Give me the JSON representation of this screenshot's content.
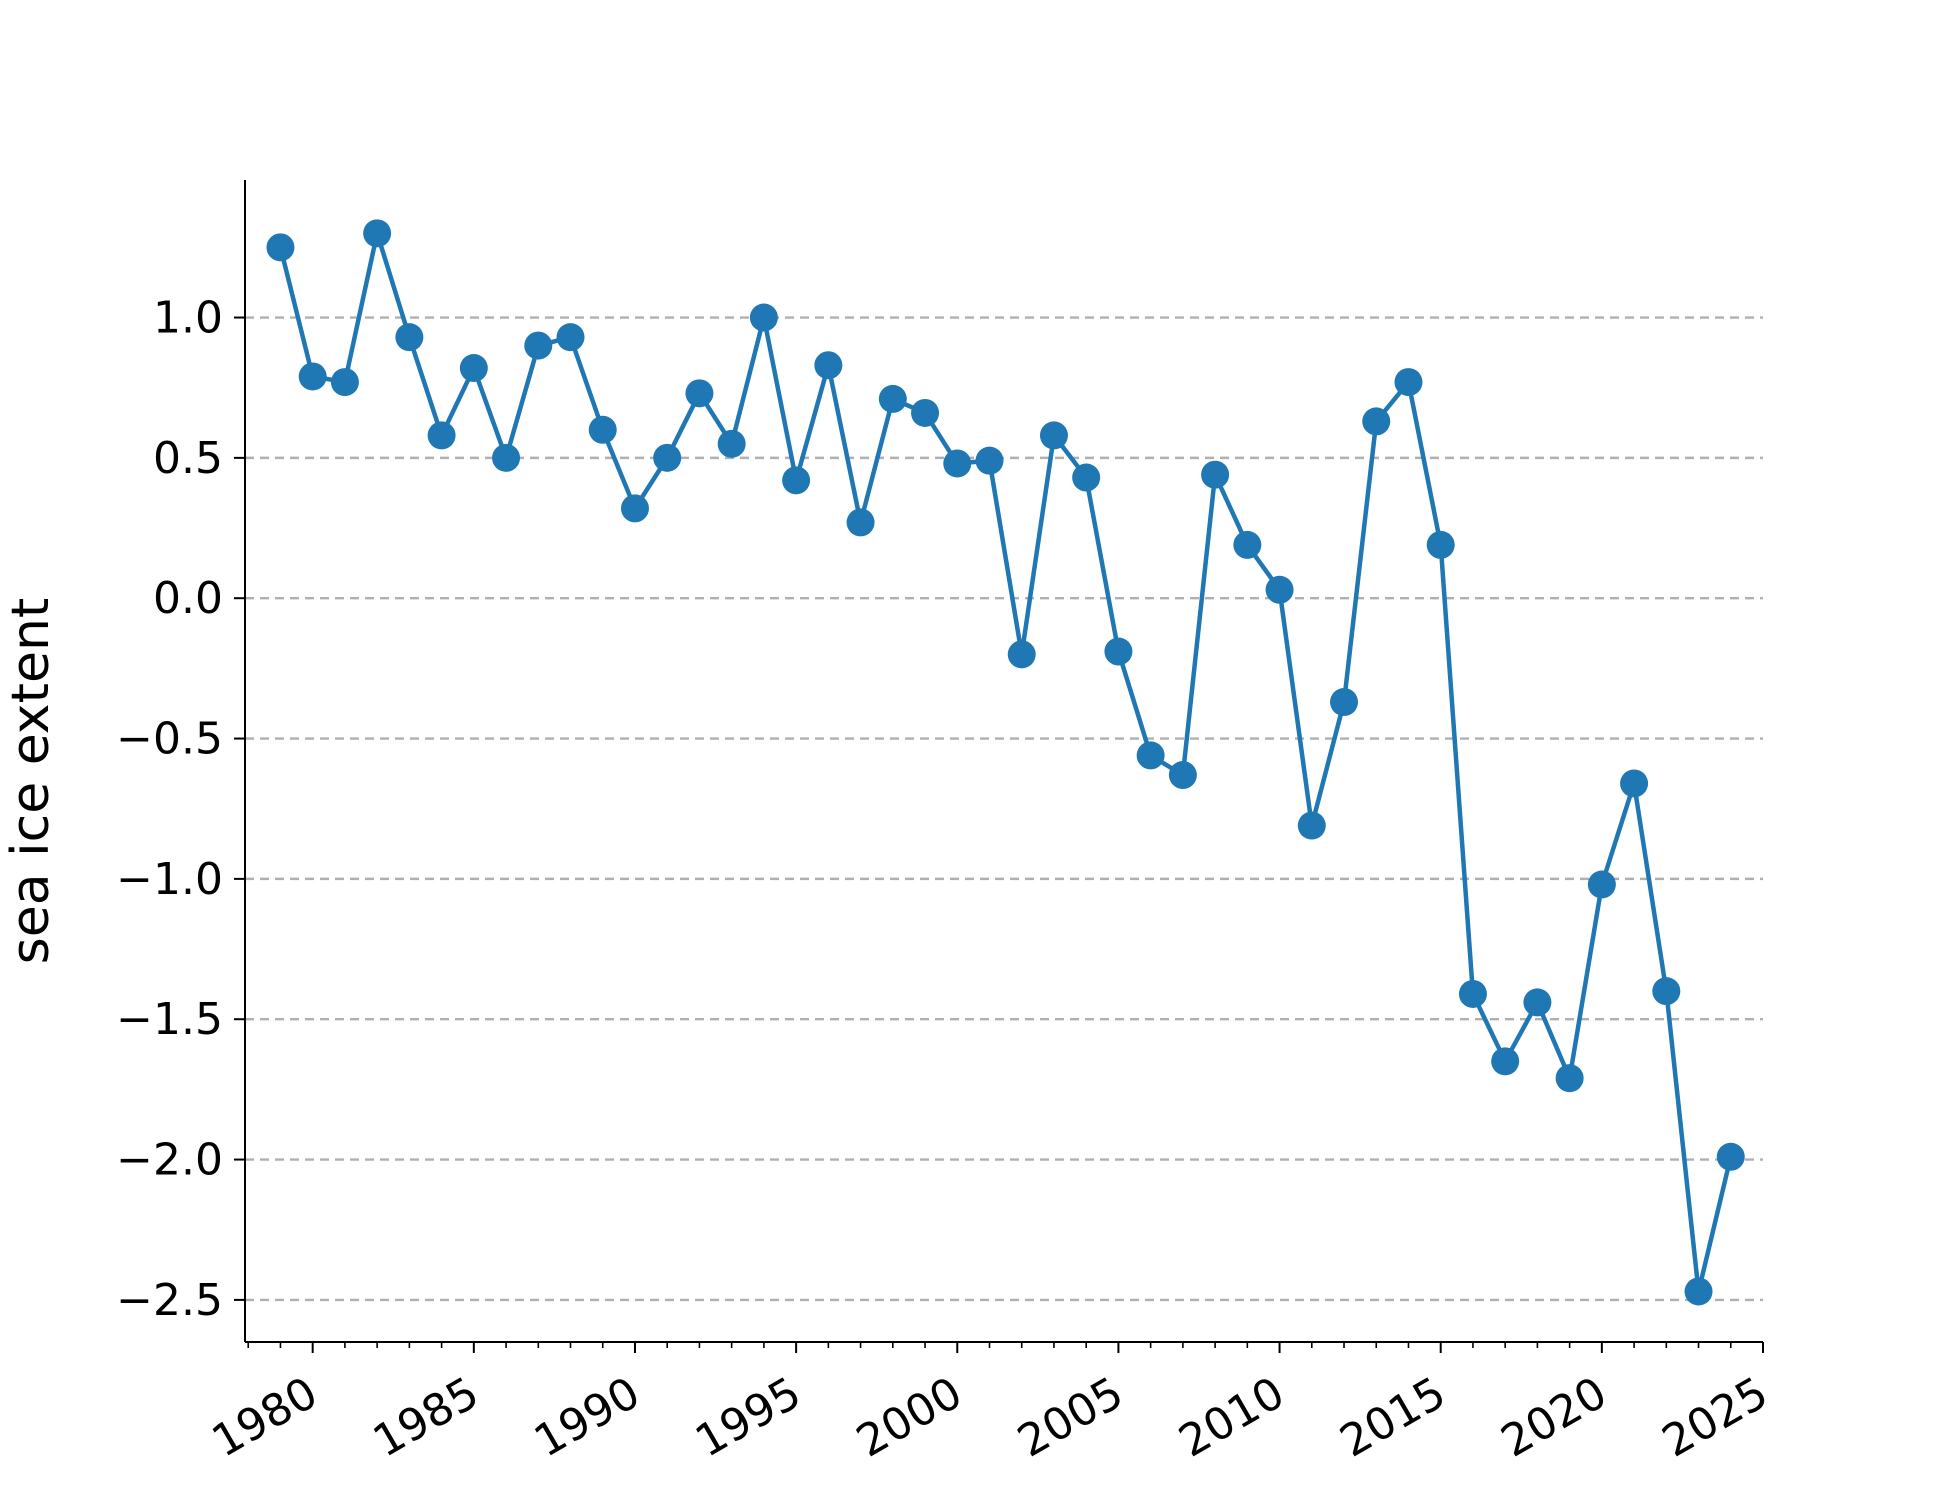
{
  "chart_data": {
    "type": "line",
    "title": "",
    "xlabel": "",
    "ylabel": "sea ice extent",
    "xlim": [
      1977.9,
      2025
    ],
    "ylim": [
      -2.65,
      1.49
    ],
    "x_ticks": [
      1980,
      1985,
      1990,
      1995,
      2000,
      2005,
      2010,
      2015,
      2020,
      2025
    ],
    "x_tick_labels": [
      "1980",
      "1985",
      "1990",
      "1995",
      "2000",
      "2005",
      "2010",
      "2015",
      "2020",
      "2025"
    ],
    "y_ticks": [
      1.0,
      0.5,
      0.0,
      -0.5,
      -1.0,
      -1.5,
      -2.0,
      -2.5
    ],
    "y_tick_labels": [
      "1.0",
      "0.5",
      "0.0",
      "−0.5",
      "−1.0",
      "−1.5",
      "−2.0",
      "−2.5"
    ],
    "grid": "horizontal dashed",
    "legend": "none",
    "colors": {
      "series": "#1f77b4",
      "grid": "#b0b0b0",
      "axis": "#000000"
    },
    "series": [
      {
        "x": [
          1979,
          1980,
          1981,
          1982,
          1983,
          1984,
          1985,
          1986,
          1987,
          1988,
          1989,
          1990,
          1991,
          1992,
          1993,
          1994,
          1995,
          1996,
          1997,
          1998,
          1999,
          2000,
          2001,
          2002,
          2003,
          2004,
          2005,
          2006,
          2007,
          2008,
          2009,
          2010,
          2011,
          2012,
          2013,
          2014,
          2015,
          2016,
          2017,
          2018,
          2019,
          2020,
          2021,
          2022,
          2023,
          2024
        ],
        "values": [
          1.25,
          0.79,
          0.77,
          1.3,
          0.93,
          0.58,
          0.82,
          0.5,
          0.9,
          0.93,
          0.6,
          0.32,
          0.5,
          0.73,
          0.55,
          1.0,
          0.42,
          0.83,
          0.27,
          0.71,
          0.66,
          0.48,
          0.49,
          -0.2,
          0.58,
          0.43,
          -0.19,
          -0.56,
          -0.63,
          0.44,
          0.19,
          0.03,
          -0.81,
          -0.37,
          0.63,
          0.77,
          0.19,
          -1.41,
          -1.65,
          -1.44,
          -1.71,
          -1.02,
          -0.66,
          -1.4,
          -2.47,
          -1.99
        ]
      }
    ]
  }
}
